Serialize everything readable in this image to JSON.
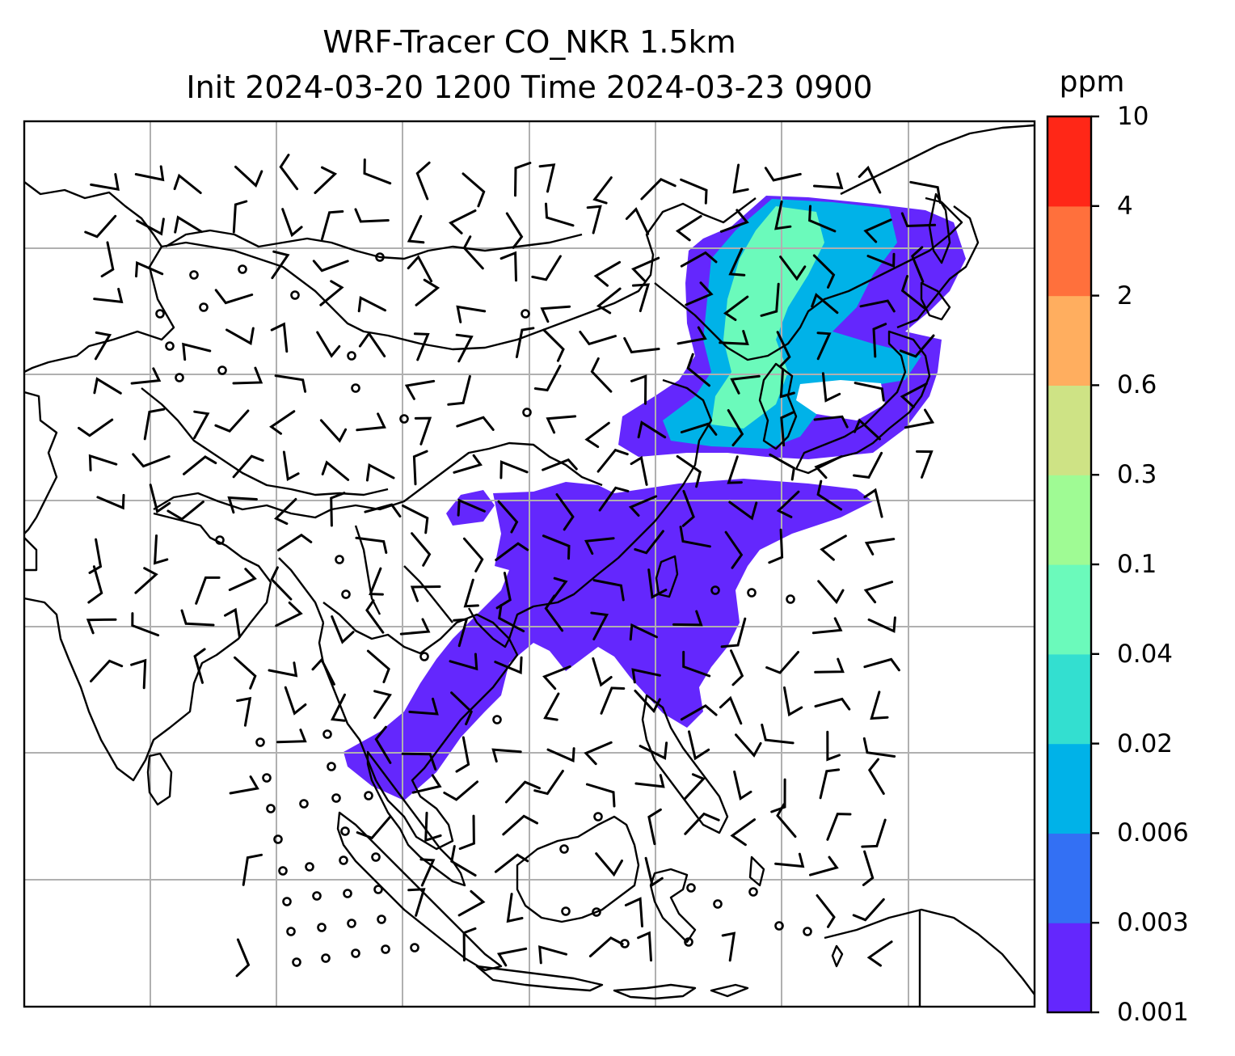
{
  "figure": {
    "title_line1": "WRF-Tracer CO_NKR 1.5km",
    "title_line2": "Init 2024-03-20 1200 Time 2024-03-23 0900"
  },
  "colorbar": {
    "unit": "ppm",
    "levels": [
      "0.001",
      "0.003",
      "0.006",
      "0.02",
      "0.04",
      "0.1",
      "0.3",
      "0.6",
      "2",
      "4",
      "10"
    ],
    "colors": [
      "#6427fd",
      "#3370f4",
      "#00b2e8",
      "#33dfd0",
      "#6bfabb",
      "#9ffb94",
      "#cee385",
      "#ffae5f",
      "#ff703c",
      "#ff2717"
    ]
  },
  "map": {
    "tracer_fill": "#6427fd",
    "coast_color": "#000000",
    "grid_color": "#b0b0b0"
  }
}
